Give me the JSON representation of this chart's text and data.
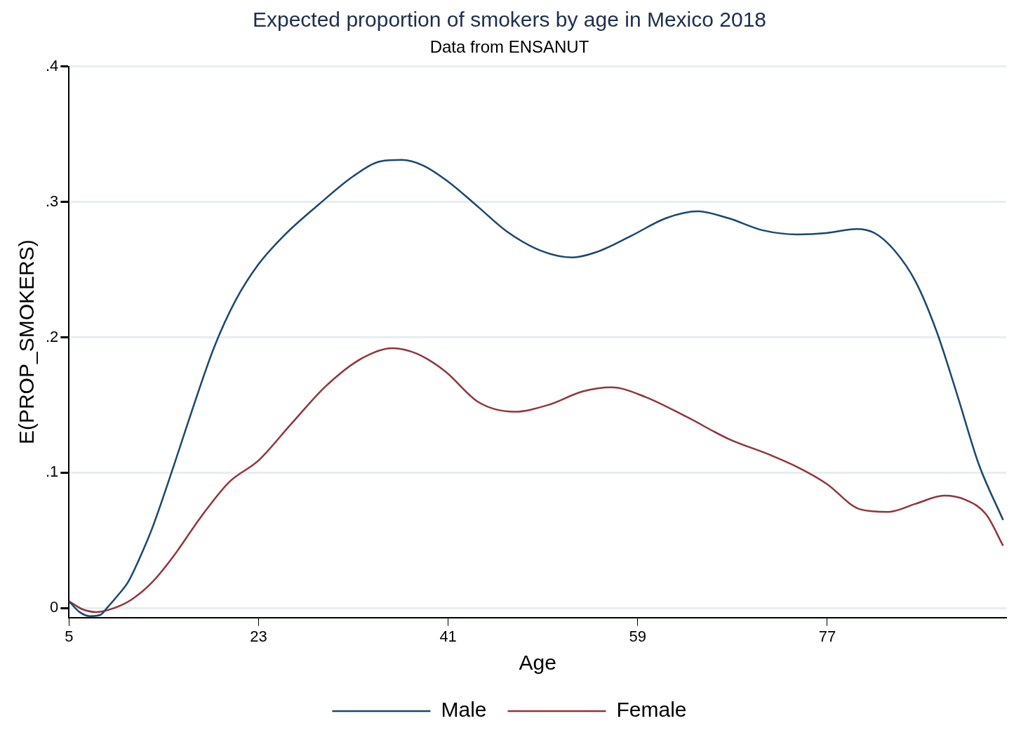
{
  "chart_data": {
    "type": "line",
    "title": "Expected proportion of smokers by age in Mexico 2018",
    "subtitle": "Data from ENSANUT",
    "xlabel": "Age",
    "ylabel": "E(PROP_SMOKERS)",
    "xlim": [
      5,
      94
    ],
    "xticks": [
      5,
      23,
      41,
      59,
      77
    ],
    "ylim": [
      -0.007,
      0.4
    ],
    "yticks": [
      0,
      {
        "value": 0.1,
        "label": ".1"
      },
      {
        "value": 0.2,
        "label": ".2"
      },
      {
        "value": 0.3,
        "label": ".3"
      },
      {
        "value": 0.4,
        "label": ".4"
      }
    ],
    "grid": "y",
    "legend": "bottom",
    "marker": "none",
    "line_style": "solid",
    "series": [
      {
        "name": "Male",
        "color": "#1a476f",
        "x": [
          5,
          6,
          7,
          8,
          8.6,
          9.6,
          10.6,
          11.6,
          12.9,
          14.9,
          16.9,
          18.8,
          20.8,
          23,
          25.4,
          28.7,
          32,
          34.6,
          36.6,
          38.6,
          41,
          43.9,
          46.6,
          49.8,
          52.8,
          55.1,
          58.4,
          61.7,
          64.7,
          67.6,
          70.9,
          74.2,
          76.9,
          79.8,
          81.5,
          83.4,
          85.4,
          87.4,
          89.4,
          91.4,
          93.7
        ],
        "values": [
          0.005,
          -0.003,
          -0.006,
          -0.005,
          0,
          0.009,
          0.019,
          0.035,
          0.059,
          0.104,
          0.151,
          0.193,
          0.227,
          0.254,
          0.275,
          0.298,
          0.319,
          0.33,
          0.331,
          0.327,
          0.315,
          0.296,
          0.278,
          0.264,
          0.259,
          0.263,
          0.275,
          0.288,
          0.293,
          0.288,
          0.279,
          0.276,
          0.277,
          0.28,
          0.277,
          0.264,
          0.241,
          0.204,
          0.156,
          0.106,
          0.065
        ]
      },
      {
        "name": "Female",
        "color": "#90353b",
        "x": [
          5,
          6.3,
          7.6,
          9.3,
          10.9,
          12.9,
          14.9,
          17.5,
          20.2,
          23,
          26.1,
          29.4,
          32.7,
          35.7,
          38,
          40.7,
          43.9,
          47.3,
          50.5,
          53.8,
          56.5,
          59.7,
          63.7,
          67.6,
          71.6,
          74.2,
          76.9,
          80.1,
          82.8,
          85.4,
          88.1,
          90.1,
          92.1,
          93.7
        ],
        "values": [
          0.005,
          -0.001,
          -0.003,
          0,
          0.006,
          0.019,
          0.038,
          0.067,
          0.093,
          0.109,
          0.136,
          0.164,
          0.184,
          0.192,
          0.188,
          0.175,
          0.152,
          0.145,
          0.15,
          0.16,
          0.163,
          0.156,
          0.141,
          0.125,
          0.113,
          0.104,
          0.092,
          0.073,
          0.071,
          0.077,
          0.083,
          0.08,
          0.069,
          0.046
        ]
      }
    ]
  }
}
